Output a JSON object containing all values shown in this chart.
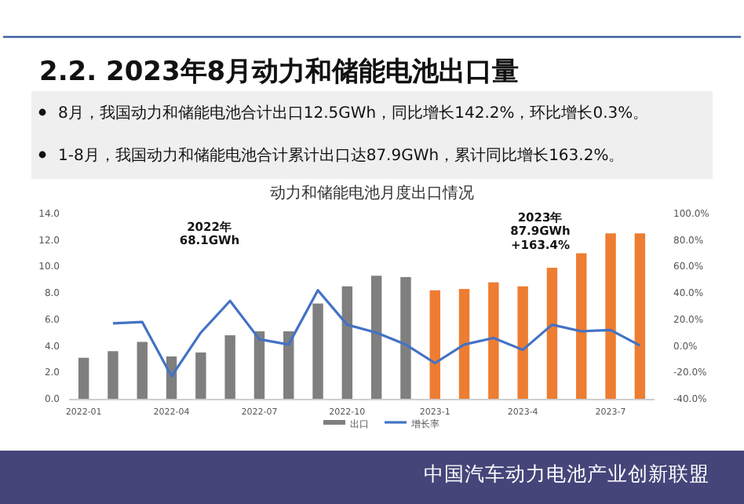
{
  "chart_data": {
    "type": "bar",
    "title": "2.2. 2023年8月动力和储能电池出口量",
    "subtitle": "动力和储能电池月度出口情况",
    "annotations": [
      "8月，我国动力和储能电池合计出口12.5GWh，同比增长142.2%，环比增长0.3%。",
      "1-8月，我国动力和储能电池合计累计出口达87.9GWh，累计同比增长163.2%。",
      "2022年\n68.1GWh",
      "2023年\n87.9GWh\n+163.4%",
      "中国汽车动力电池产业创新联盟"
    ],
    "categories": [
      "2022-01",
      null,
      null,
      "2022-04",
      null,
      null,
      "2022-07",
      null,
      null,
      "2022-10",
      null,
      null,
      "2023-1",
      null,
      null,
      "2023-4",
      null,
      null,
      "2023-7",
      null
    ],
    "series": [
      {
        "name": "出口",
        "colors": [
          "#7f7f7f",
          "#7f7f7f",
          "#7f7f7f",
          "#7f7f7f",
          "#7f7f7f",
          "#7f7f7f",
          "#7f7f7f",
          "#7f7f7f",
          "#7f7f7f",
          "#7f7f7f",
          "#7f7f7f",
          "#7f7f7f",
          "#ed7d31",
          "#ed7d31",
          "#ed7d31",
          "#ed7d31",
          "#ed7d31",
          "#ed7d31",
          "#ed7d31",
          "#ed7d31"
        ],
        "color": "#7f7f7f",
        "values": [
          3.1,
          3.6,
          4.3,
          3.2,
          3.5,
          4.8,
          5.1,
          5.1,
          7.2,
          8.5,
          9.3,
          9.2,
          8.2,
          8.3,
          8.8,
          8.5,
          9.9,
          11.0,
          12.5,
          12.5
        ]
      },
      {
        "name": "增长率",
        "type": "line",
        "axis": "y2",
        "color": "#4472c4",
        "values": [
          null,
          17,
          18,
          -23,
          10,
          34,
          5,
          1,
          42,
          16,
          10,
          1,
          -13,
          1,
          6,
          -3,
          16,
          11,
          12,
          0.3
        ]
      }
    ],
    "ylim": [
      0,
      14
    ],
    "yticks": [
      {
        "value": 0,
        "label": "0.0"
      },
      {
        "value": 2,
        "label": "2.0"
      },
      {
        "value": 4,
        "label": "4.0"
      },
      {
        "value": 6,
        "label": "6.0"
      },
      {
        "value": 8,
        "label": "8.0"
      },
      {
        "value": 10,
        "label": "10.0"
      },
      {
        "value": 12,
        "label": "12.0"
      },
      {
        "value": 14,
        "label": "14.0"
      }
    ],
    "y2lim": [
      -40,
      100
    ],
    "y2ticks": [
      {
        "value": -40,
        "label": "-40.0%"
      },
      {
        "value": -20,
        "label": "-20.0%"
      },
      {
        "value": 0,
        "label": "0.0%"
      },
      {
        "value": 20,
        "label": "20.0%"
      },
      {
        "value": 40,
        "label": "40.0%"
      },
      {
        "value": 60,
        "label": "60.0%"
      },
      {
        "value": 80,
        "label": "80.0%"
      },
      {
        "value": 100,
        "label": "100.0%"
      }
    ],
    "legend": "bottom",
    "grid": false
  }
}
